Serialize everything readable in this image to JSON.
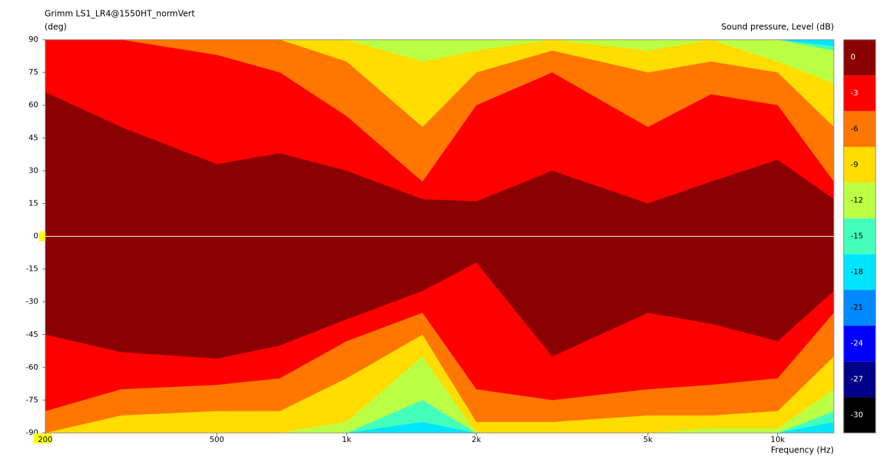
{
  "chart_data": {
    "type": "contour",
    "title": "Grimm LS1_LR4@1550HT_normVert",
    "y_label": "(deg)",
    "x_label": "Frequency  (Hz)",
    "colorbar_label": "Sound pressure, Level  (dB)",
    "log_x": true,
    "xlim": [
      200,
      13500
    ],
    "ylim": [
      -90,
      90
    ],
    "xticks": [
      200,
      500,
      {
        "value": 1000,
        "label": "1k"
      },
      {
        "value": 2000,
        "label": "2k"
      },
      {
        "value": 5000,
        "label": "5k"
      },
      {
        "value": 10000,
        "label": "10k"
      }
    ],
    "yticks": [
      90,
      75,
      60,
      45,
      30,
      15,
      0,
      -15,
      -30,
      -45,
      -60,
      -75,
      -90
    ],
    "levels": [
      0,
      -3,
      -6,
      -9,
      -12,
      -15,
      -18,
      -21,
      -24,
      -27,
      -30
    ],
    "colors": [
      "#8b0000",
      "#ff0000",
      "#ff7700",
      "#ffdd00",
      "#bbff44",
      "#44ffbb",
      "#00e5ff",
      "#0088ff",
      "#0000ff",
      "#000088",
      "#000000"
    ],
    "x": [
      200,
      300,
      500,
      700,
      1000,
      1500,
      2000,
      3000,
      5000,
      7000,
      10000,
      13500
    ],
    "bands": [
      {
        "upper": [
          66,
          50,
          33,
          38,
          30,
          17,
          16,
          30,
          15,
          25,
          35,
          17
        ],
        "lower": [
          -45,
          -53,
          -56,
          -50,
          -38,
          -25,
          -12,
          -55,
          -35,
          -40,
          -48,
          -25
        ]
      },
      {
        "upper": [
          90,
          90,
          83,
          75,
          55,
          25,
          60,
          75,
          50,
          65,
          60,
          25
        ],
        "lower": [
          -80,
          -70,
          -68,
          -65,
          -48,
          -35,
          -70,
          -75,
          -70,
          -68,
          -65,
          -35
        ]
      },
      {
        "upper": [
          90,
          90,
          90,
          90,
          80,
          50,
          75,
          85,
          75,
          80,
          75,
          50
        ],
        "lower": [
          -90,
          -82,
          -80,
          -80,
          -65,
          -45,
          -85,
          -85,
          -82,
          -82,
          -80,
          -55
        ]
      },
      {
        "upper": [
          90,
          90,
          90,
          90,
          90,
          80,
          85,
          90,
          85,
          90,
          80,
          70
        ],
        "lower": [
          -90,
          -90,
          -90,
          -90,
          -85,
          -55,
          -90,
          -90,
          -90,
          -88,
          -88,
          -70
        ]
      },
      {
        "upper": [
          90,
          90,
          90,
          90,
          90,
          90,
          90,
          90,
          90,
          90,
          90,
          85
        ],
        "lower": [
          -90,
          -90,
          -90,
          -90,
          -90,
          -75,
          -90,
          -90,
          -90,
          -90,
          -90,
          -80
        ]
      },
      {
        "upper": [
          90,
          90,
          90,
          90,
          90,
          90,
          90,
          90,
          90,
          90,
          90,
          87
        ],
        "lower": [
          -90,
          -90,
          -90,
          -90,
          -90,
          -85,
          -90,
          -90,
          -90,
          -90,
          -90,
          -85
        ]
      }
    ]
  }
}
